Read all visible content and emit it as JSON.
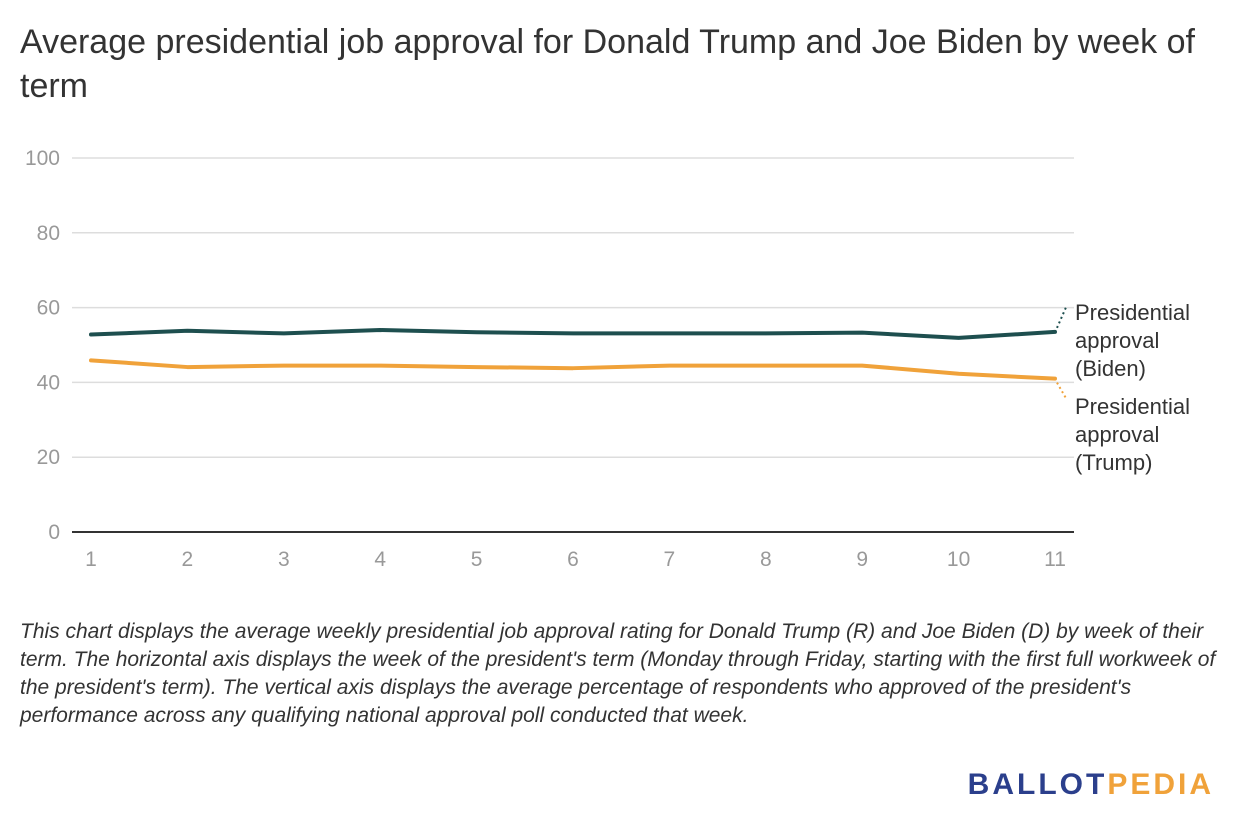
{
  "chart_data": {
    "type": "line",
    "title": "Average presidential job approval for Donald Trump and Joe Biden by week of term",
    "categories": [
      "1",
      "2",
      "3",
      "4",
      "5",
      "6",
      "7",
      "8",
      "9",
      "10",
      "11"
    ],
    "x": [
      1,
      2,
      3,
      4,
      5,
      6,
      7,
      8,
      9,
      10,
      11
    ],
    "yticks": [
      "0",
      "20",
      "40",
      "60",
      "80",
      "100"
    ],
    "ylim": [
      0,
      100
    ],
    "grid": true,
    "xlabel": "",
    "ylabel": "",
    "series": [
      {
        "name": "Presidential approval (Biden)",
        "label_lines": [
          "Presidential",
          "approval",
          "(Biden)"
        ],
        "color": "#1e4f4f",
        "values": [
          52.8,
          53.8,
          53.1,
          54.0,
          53.4,
          53.1,
          53.1,
          53.1,
          53.3,
          51.9,
          53.5
        ]
      },
      {
        "name": "Presidential approval (Trump)",
        "label_lines": [
          "Presidential",
          "approval",
          "(Trump)"
        ],
        "color": "#f0a23a",
        "values": [
          45.9,
          44.1,
          44.5,
          44.5,
          44.1,
          43.8,
          44.5,
          44.5,
          44.5,
          42.3,
          41.0
        ]
      }
    ]
  },
  "caption": "This chart displays the average weekly presidential job approval rating for Donald Trump (R) and Joe Biden (D) by week of their term. The horizontal axis displays the week of the president's term (Monday through Friday, starting with the first full workweek of the president's term). The vertical axis displays the average percentage of respondents who approved of the president's performance across any qualifying national approval poll conducted that week.",
  "logo": {
    "part1": "BALLOT",
    "part2": "PEDIA",
    "color1": "#2b3f8c",
    "color2": "#f0a23a"
  }
}
